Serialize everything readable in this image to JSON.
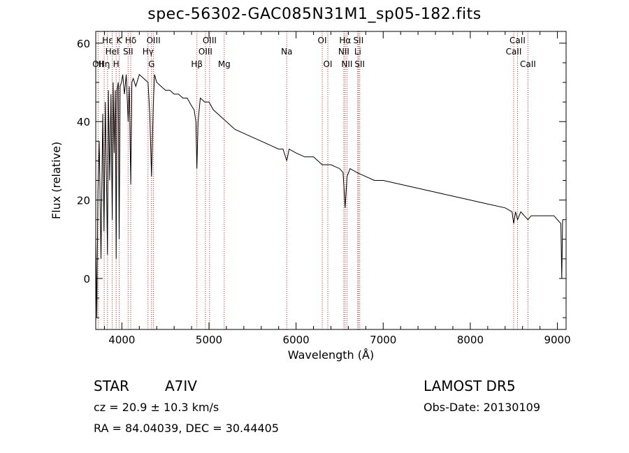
{
  "title": "spec-56302-GAC085N31M1_sp05-182.fits",
  "chart_data": {
    "type": "line",
    "xlabel": "Wavelength (Å)",
    "ylabel": "Flux (relative)",
    "xlim": [
      3700,
      9100
    ],
    "ylim": [
      -13,
      63
    ],
    "xticks": [
      4000,
      5000,
      6000,
      7000,
      8000,
      9000
    ],
    "yticks": [
      0,
      20,
      40,
      60
    ],
    "grid": false,
    "lines": [
      {
        "label": "OII",
        "x": 3727,
        "row": 3
      },
      {
        "label": "Hη",
        "x": 3797,
        "row": 3
      },
      {
        "label": "Hε",
        "x": 3835,
        "row": 1
      },
      {
        "label": "HeI",
        "x": 3889,
        "row": 2
      },
      {
        "label": "H",
        "x": 3934,
        "row": 3
      },
      {
        "label": "K",
        "x": 3969,
        "row": 1
      },
      {
        "label": "SII",
        "x": 4072,
        "row": 2
      },
      {
        "label": "Hδ",
        "x": 4102,
        "row": 1
      },
      {
        "label": "Hγ",
        "x": 4300,
        "row": 2
      },
      {
        "label": "G",
        "x": 4340,
        "row": 3
      },
      {
        "label": "OIII",
        "x": 4363,
        "row": 1
      },
      {
        "label": "Hβ",
        "x": 4861,
        "row": 3
      },
      {
        "label": "OIII",
        "x": 4959,
        "row": 2
      },
      {
        "label": "OIII",
        "x": 5007,
        "row": 1
      },
      {
        "label": "Mg",
        "x": 5175,
        "row": 3
      },
      {
        "label": "Na",
        "x": 5893,
        "row": 2
      },
      {
        "label": "OI",
        "x": 6300,
        "row": 1
      },
      {
        "label": "OI",
        "x": 6364,
        "row": 3
      },
      {
        "label": "NII",
        "x": 6548,
        "row": 2
      },
      {
        "label": "Hα",
        "x": 6563,
        "row": 1
      },
      {
        "label": "NII",
        "x": 6584,
        "row": 3
      },
      {
        "label": "Li",
        "x": 6708,
        "row": 2
      },
      {
        "label": "SII",
        "x": 6716,
        "row": 1
      },
      {
        "label": "SII",
        "x": 6731,
        "row": 3
      },
      {
        "label": "CaII",
        "x": 8498,
        "row": 2
      },
      {
        "label": "CaII",
        "x": 8542,
        "row": 1
      },
      {
        "label": "CaII",
        "x": 8662,
        "row": 3
      }
    ],
    "series": [
      {
        "x": [
          3700,
          3712,
          3725,
          3740,
          3760,
          3780,
          3795,
          3810,
          3825,
          3835,
          3845,
          3860,
          3875,
          3889,
          3900,
          3912,
          3925,
          3934,
          3945,
          3958,
          3969,
          3980,
          3995,
          4010,
          4030,
          4050,
          4072,
          4085,
          4102,
          4115,
          4130,
          4160,
          4200,
          4250,
          4300,
          4320,
          4340,
          4360,
          4375,
          4400,
          4450,
          4500,
          4550,
          4600,
          4650,
          4700,
          4750,
          4800,
          4830,
          4850,
          4861,
          4875,
          4900,
          4950,
          5000,
          5050,
          5100,
          5150,
          5200,
          5300,
          5400,
          5500,
          5600,
          5700,
          5800,
          5850,
          5893,
          5920,
          6000,
          6100,
          6200,
          6250,
          6300,
          6350,
          6400,
          6500,
          6540,
          6563,
          6585,
          6620,
          6700,
          6800,
          6900,
          7000,
          7200,
          7400,
          7600,
          7800,
          8000,
          8200,
          8400,
          8480,
          8498,
          8520,
          8542,
          8580,
          8620,
          8662,
          8700,
          8800,
          8900,
          8960,
          9000,
          9040,
          9050,
          9060
        ],
        "y": [
          10,
          -10,
          22,
          35,
          5,
          42,
          12,
          45,
          22,
          6,
          48,
          25,
          47,
          15,
          50,
          32,
          48,
          5,
          48,
          50,
          10,
          49,
          50,
          52,
          47,
          52,
          40,
          49,
          24,
          50,
          51,
          49,
          52,
          51,
          50,
          42,
          26,
          44,
          52,
          50,
          49,
          48,
          48,
          47,
          47,
          46,
          46,
          44,
          43,
          40,
          28,
          40,
          46,
          45,
          45,
          43,
          42,
          41,
          40,
          38,
          37,
          36,
          35,
          34,
          33,
          33,
          30,
          33,
          32,
          31,
          31,
          30,
          29,
          29,
          29,
          28,
          27,
          18,
          26,
          28,
          27,
          26,
          25,
          25,
          24,
          23,
          22,
          21,
          20,
          19,
          18,
          17,
          14,
          17,
          15,
          17,
          16,
          15,
          16,
          16,
          16,
          16,
          15,
          14,
          0,
          15
        ]
      }
    ]
  },
  "info": {
    "class": "STAR",
    "subclass": "A7IV",
    "survey": "LAMOST  DR5",
    "cz": "cz = 20.9 ± 10.3 km/s",
    "obs_date": "Obs-Date: 20130109",
    "coords": "RA =  84.04039, DEC =  30.44405"
  }
}
